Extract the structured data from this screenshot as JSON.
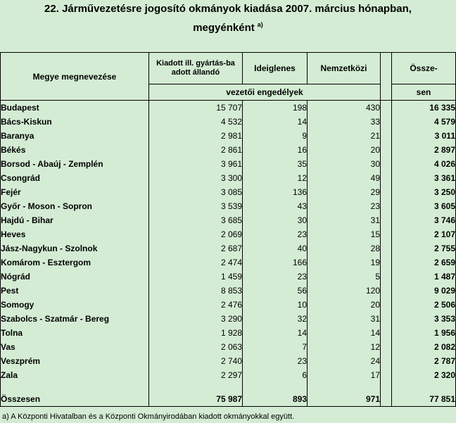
{
  "title": {
    "line1": "22. Járművezetésre jogosító okmányok kiadása 2007. március hónapban,",
    "line2": "megyénként",
    "sup": "a)"
  },
  "headers": {
    "county": "Megye megnevezése",
    "col1": "Kiadott ill. gyártás-ba adott állandó",
    "col2": "Ideiglenes",
    "col3": "Nemzetközi",
    "total_top": "Össze-",
    "total_bottom": "sen",
    "subheader": "vezetői engedélyek"
  },
  "rows": [
    {
      "name": "Budapest",
      "c1": "15 707",
      "c2": "198",
      "c3": "430",
      "total": "16 335"
    },
    {
      "name": "Bács-Kiskun",
      "c1": "4 532",
      "c2": "14",
      "c3": "33",
      "total": "4 579"
    },
    {
      "name": "Baranya",
      "c1": "2 981",
      "c2": "9",
      "c3": "21",
      "total": "3 011"
    },
    {
      "name": "Békés",
      "c1": "2 861",
      "c2": "16",
      "c3": "20",
      "total": "2 897"
    },
    {
      "name": "Borsod - Abaúj - Zemplén",
      "c1": "3 961",
      "c2": "35",
      "c3": "30",
      "total": "4 026"
    },
    {
      "name": "Csongrád",
      "c1": "3 300",
      "c2": "12",
      "c3": "49",
      "total": "3 361"
    },
    {
      "name": "Fejér",
      "c1": "3 085",
      "c2": "136",
      "c3": "29",
      "total": "3 250"
    },
    {
      "name": "Győr - Moson - Sopron",
      "c1": "3 539",
      "c2": "43",
      "c3": "23",
      "total": "3 605"
    },
    {
      "name": "Hajdú - Bihar",
      "c1": "3 685",
      "c2": "30",
      "c3": "31",
      "total": "3 746"
    },
    {
      "name": "Heves",
      "c1": "2 069",
      "c2": "23",
      "c3": "15",
      "total": "2 107"
    },
    {
      "name": "Jász-Nagykun - Szolnok",
      "c1": "2 687",
      "c2": "40",
      "c3": "28",
      "total": "2 755"
    },
    {
      "name": "Komárom - Esztergom",
      "c1": "2 474",
      "c2": "166",
      "c3": "19",
      "total": "2 659"
    },
    {
      "name": "Nógrád",
      "c1": "1 459",
      "c2": "23",
      "c3": "5",
      "total": "1 487"
    },
    {
      "name": "Pest",
      "c1": "8 853",
      "c2": "56",
      "c3": "120",
      "total": "9 029"
    },
    {
      "name": "Somogy",
      "c1": "2 476",
      "c2": "10",
      "c3": "20",
      "total": "2 506"
    },
    {
      "name": "Szabolcs - Szatmár - Bereg",
      "c1": "3 290",
      "c2": "32",
      "c3": "31",
      "total": "3 353"
    },
    {
      "name": "Tolna",
      "c1": "1 928",
      "c2": "14",
      "c3": "14",
      "total": "1 956"
    },
    {
      "name": "Vas",
      "c1": "2 063",
      "c2": "7",
      "c3": "12",
      "total": "2 082"
    },
    {
      "name": "Veszprém",
      "c1": "2 740",
      "c2": "23",
      "c3": "24",
      "total": "2 787"
    },
    {
      "name": "Zala",
      "c1": "2 297",
      "c2": "6",
      "c3": "17",
      "total": "2 320"
    }
  ],
  "grand_total": {
    "name": "Összesen",
    "c1": "75 987",
    "c2": "893",
    "c3": "971",
    "total": "77 851"
  },
  "footnote": "a) A Központi Hivatalban és a Központi Okmányirodában kiadott okmányokkal együtt."
}
